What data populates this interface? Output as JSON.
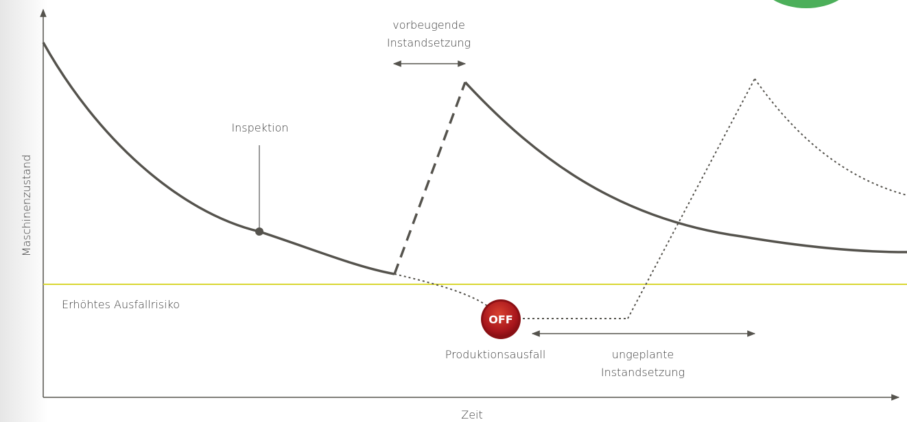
{
  "labels": {
    "preventive": [
      "vorbeugende",
      "Instandsetzung"
    ],
    "inspection": "Inspektion",
    "y_axis": "Maschinenzustand",
    "risk": "Erhöhtes Ausfallrisiko",
    "off": "OFF",
    "outage": "Produktionsausfall",
    "unplanned": [
      "ungeplante",
      "Instandsetzung"
    ],
    "x_axis": "Zeit"
  }
}
